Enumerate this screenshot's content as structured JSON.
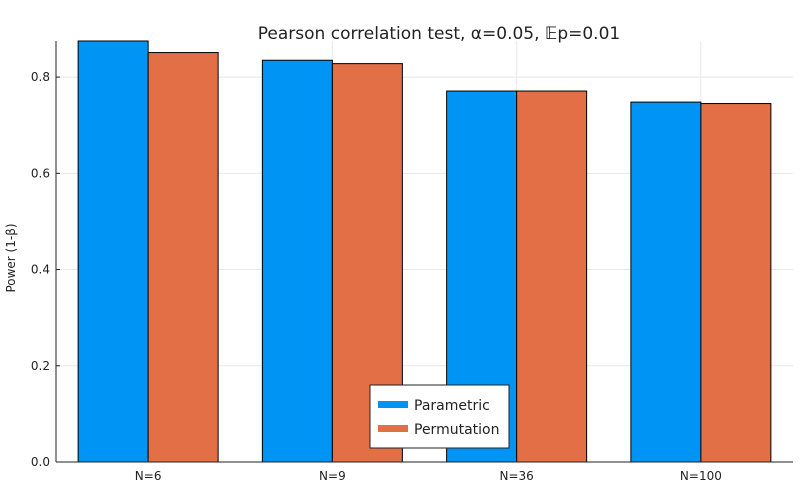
{
  "chart_data": {
    "type": "bar",
    "title": "Pearson correlation test, α=0.05, 𝔼p=0.01",
    "xlabel": "",
    "ylabel": "Power (1-β)",
    "categories": [
      "N=6",
      "N=9",
      "N=36",
      "N=100"
    ],
    "series": [
      {
        "name": "Parametric",
        "color": "#0095f5",
        "values": [
          0.875,
          0.835,
          0.771,
          0.748
        ]
      },
      {
        "name": "Permutation",
        "color": "#e26f46",
        "values": [
          0.851,
          0.828,
          0.771,
          0.745
        ]
      }
    ],
    "ylim": [
      0,
      0.875
    ],
    "yticks": [
      0.0,
      0.2,
      0.4,
      0.6,
      0.8
    ],
    "ytick_labels": [
      "0.0",
      "0.2",
      "0.4",
      "0.6",
      "0.8"
    ],
    "grid": true,
    "legend_position": "bottom-center"
  }
}
